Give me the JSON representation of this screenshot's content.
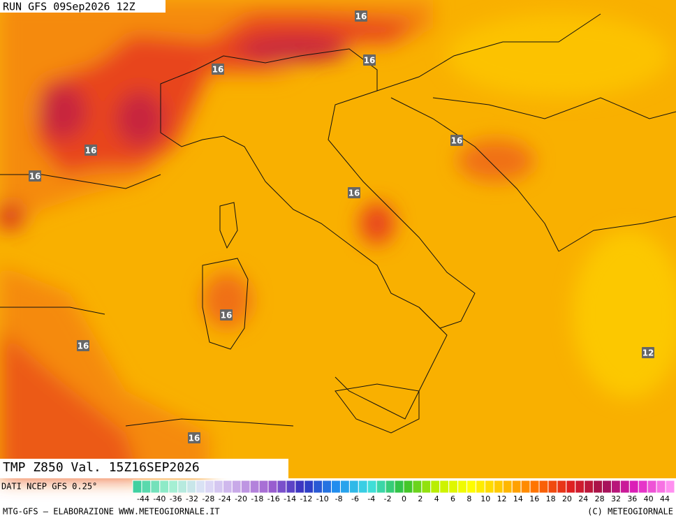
{
  "header": {
    "run": "RUN GFS 09Sep2026 12Z"
  },
  "map": {
    "contour_labels": [
      "16",
      "16",
      "16",
      "16",
      "16",
      "16",
      "16",
      "16",
      "16",
      "16",
      "12"
    ]
  },
  "footer": {
    "field": "TMP Z850 Val. 15Z16SEP2026",
    "source": "DATI NCEP GFS 0.25°",
    "scale": [
      "-44",
      "-40",
      "-36",
      "-32",
      "-28",
      "-24",
      "-20",
      "-18",
      "-16",
      "-14",
      "-12",
      "-10",
      "-8",
      "-6",
      "-4",
      "-2",
      "0",
      "2",
      "4",
      "6",
      "8",
      "10",
      "12",
      "14",
      "16",
      "18",
      "20",
      "24",
      "28",
      "32",
      "36",
      "40",
      "44"
    ],
    "credit": "MTG-GFS – ELABORAZIONE WWW.METEOGIORNALE.IT",
    "copyright": "(C) METEOGIORNALE"
  }
}
